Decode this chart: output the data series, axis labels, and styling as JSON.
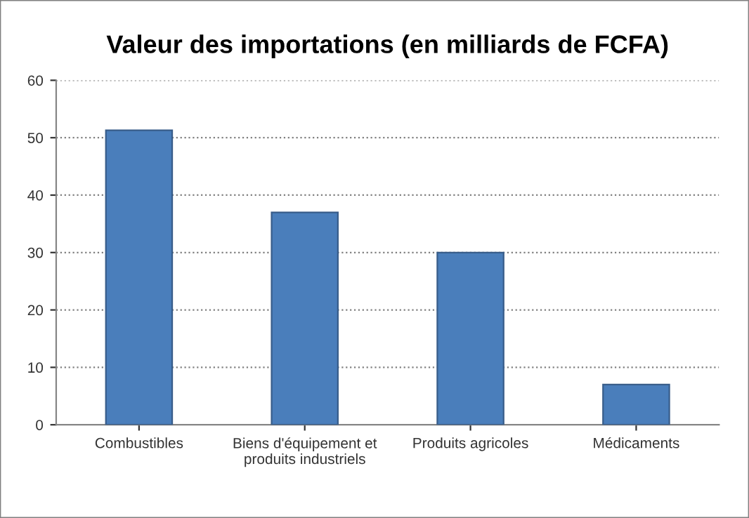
{
  "chart_data": {
    "type": "bar",
    "title": "Valeur des importations (en milliards de FCFA)",
    "categories": [
      "Combustibles",
      "Biens d'équipement et\nproduits industriels",
      "Produits agricoles",
      "Médicaments"
    ],
    "values": [
      51.3,
      37,
      30,
      7
    ],
    "color": "#4a7ebb",
    "ylim": [
      0,
      60
    ],
    "yticks": [
      0,
      10,
      20,
      30,
      40,
      50,
      60
    ],
    "grid": "y",
    "legend": false
  }
}
